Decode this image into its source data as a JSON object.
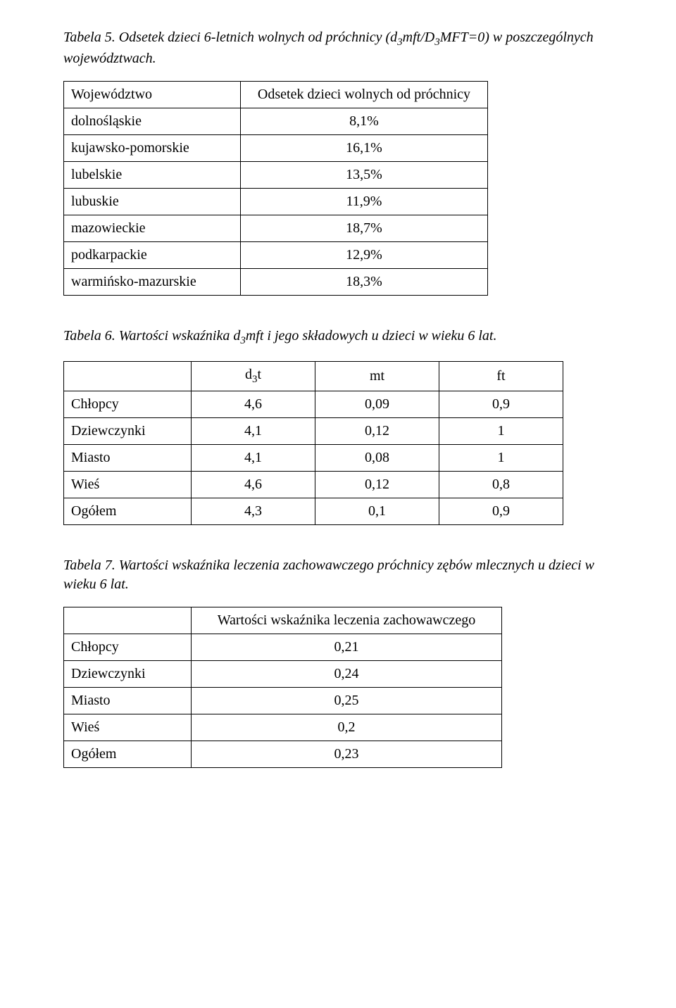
{
  "table5": {
    "caption_a": "Tabela 5. Odsetek dzieci 6-letnich wolnych od próchnicy (d",
    "caption_b": "mft/D",
    "caption_c": "MFT=0) w poszczególnych województwach.",
    "sub3": "3",
    "header_col1": "Województwo",
    "header_col2": "Odsetek dzieci wolnych od próchnicy",
    "rows": [
      {
        "label": "dolnośląskie",
        "value": "8,1%"
      },
      {
        "label": "kujawsko-pomorskie",
        "value": "16,1%"
      },
      {
        "label": "lubelskie",
        "value": "13,5%"
      },
      {
        "label": "lubuskie",
        "value": "11,9%"
      },
      {
        "label": "mazowieckie",
        "value": "18,7%"
      },
      {
        "label": "podkarpackie",
        "value": "12,9%"
      },
      {
        "label": "warmińsko-mazurskie",
        "value": "18,3%"
      }
    ]
  },
  "table6": {
    "caption_a": "Tabela 6. Wartości wskaźnika d",
    "caption_b": "mft i jego składowych u dzieci w wieku 6 lat.",
    "sub3": "3",
    "header_col2_a": "d",
    "header_col2_b": "t",
    "header_col3": "mt",
    "header_col4": "ft",
    "rows": [
      {
        "label": "Chłopcy",
        "c1": "4,6",
        "c2": "0,09",
        "c3": "0,9"
      },
      {
        "label": "Dziewczynki",
        "c1": "4,1",
        "c2": "0,12",
        "c3": "1"
      },
      {
        "label": "Miasto",
        "c1": "4,1",
        "c2": "0,08",
        "c3": "1"
      },
      {
        "label": "Wieś",
        "c1": "4,6",
        "c2": "0,12",
        "c3": "0,8"
      },
      {
        "label": "Ogółem",
        "c1": "4,3",
        "c2": "0,1",
        "c3": "0,9"
      }
    ]
  },
  "table7": {
    "caption": "Tabela 7. Wartości wskaźnika leczenia zachowawczego próchnicy zębów mlecznych u dzieci w wieku 6 lat.",
    "header_col2": "Wartości wskaźnika leczenia zachowawczego",
    "rows": [
      {
        "label": "Chłopcy",
        "value": "0,21"
      },
      {
        "label": "Dziewczynki",
        "value": "0,24"
      },
      {
        "label": "Miasto",
        "value": "0,25"
      },
      {
        "label": "Wieś",
        "value": "0,2"
      },
      {
        "label": "Ogółem",
        "value": "0,23"
      }
    ]
  }
}
